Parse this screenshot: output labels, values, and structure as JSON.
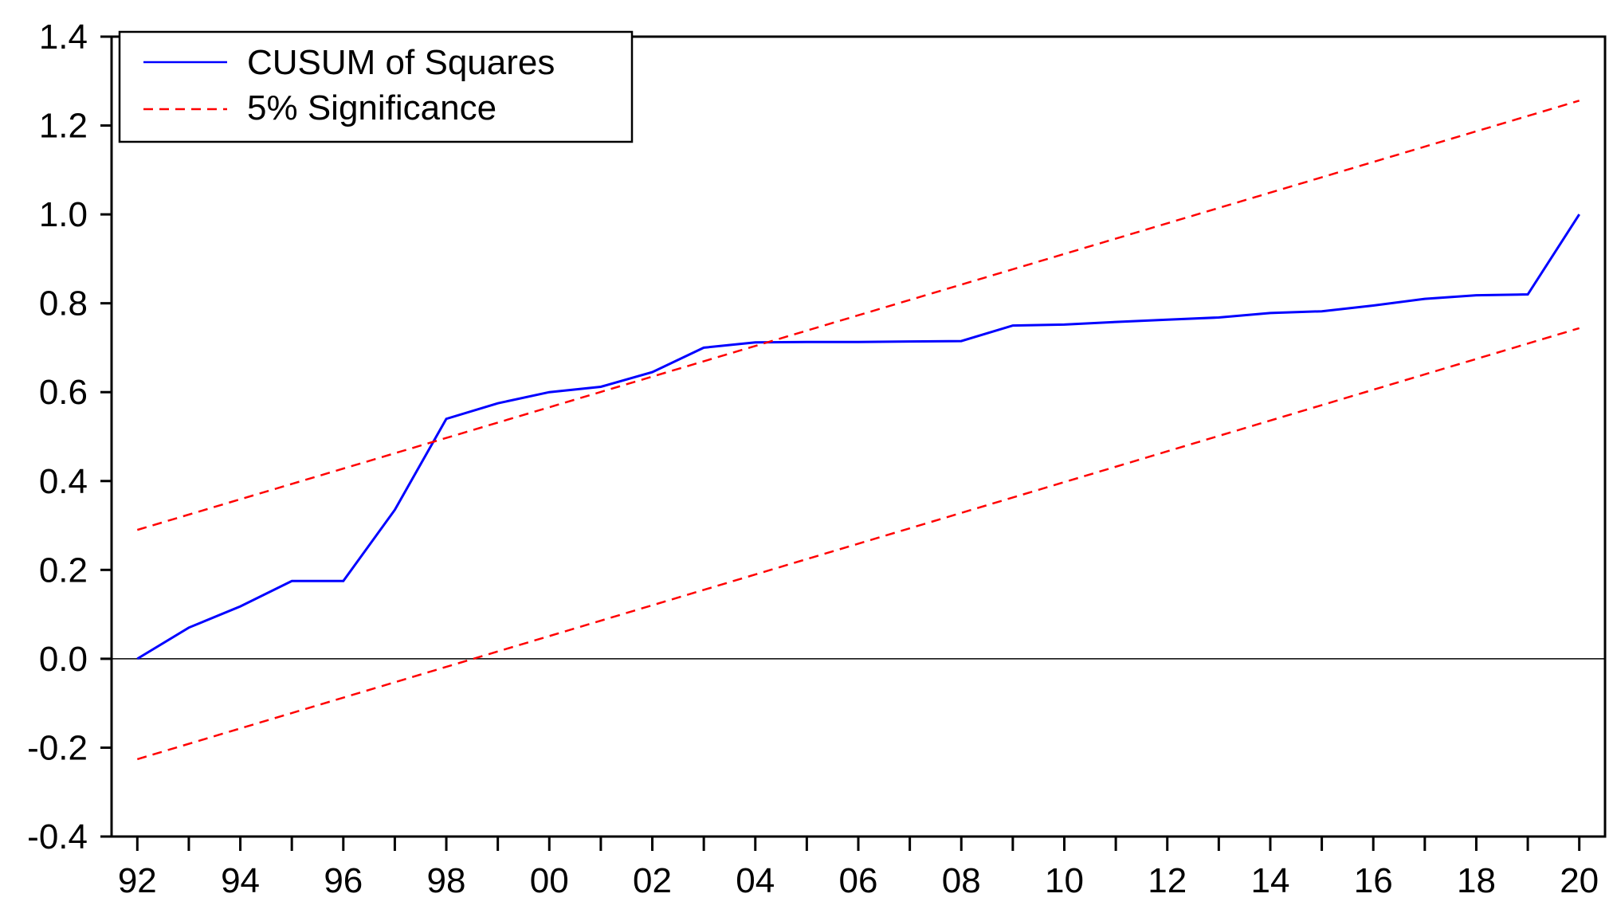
{
  "chart_data": {
    "type": "line",
    "title": "",
    "xlabel": "",
    "ylabel": "",
    "x": [
      1992,
      1993,
      1994,
      1995,
      1996,
      1997,
      1998,
      1999,
      2000,
      2001,
      2002,
      2003,
      2004,
      2005,
      2006,
      2007,
      2008,
      2009,
      2010,
      2011,
      2012,
      2013,
      2014,
      2015,
      2016,
      2017,
      2018,
      2019,
      2020
    ],
    "x_tick_labels": [
      "92",
      "94",
      "96",
      "98",
      "00",
      "02",
      "04",
      "06",
      "08",
      "10",
      "12",
      "14",
      "16",
      "18",
      "20"
    ],
    "x_tick_values": [
      1992,
      1994,
      1996,
      1998,
      2000,
      2002,
      2004,
      2006,
      2008,
      2010,
      2012,
      2014,
      2016,
      2018,
      2020
    ],
    "xlim": [
      1991.5,
      2020.5
    ],
    "ylim": [
      -0.4,
      1.4
    ],
    "y_ticks": [
      -0.4,
      -0.2,
      0.0,
      0.2,
      0.4,
      0.6,
      0.8,
      1.0,
      1.2,
      1.4
    ],
    "y_tick_labels": [
      "-0.4",
      "-0.2",
      "0.0",
      "0.2",
      "0.4",
      "0.6",
      "0.8",
      "1.0",
      "1.2",
      "1.4"
    ],
    "zero_line": true,
    "grid": false,
    "legend_position": "top-left",
    "series": [
      {
        "name": "CUSUM of Squares",
        "color": "#0000ff",
        "style": "solid",
        "values": [
          0.0,
          0.07,
          0.118,
          0.175,
          0.175,
          0.335,
          0.54,
          0.575,
          0.6,
          0.612,
          0.645,
          0.7,
          0.712,
          0.713,
          0.713,
          0.714,
          0.715,
          0.75,
          0.752,
          0.758,
          0.763,
          0.768,
          0.778,
          0.782,
          0.795,
          0.81,
          0.818,
          0.82,
          1.0
        ]
      },
      {
        "name": "5% Significance",
        "color": "#ff0000",
        "style": "dashed",
        "values_upper": [
          0.29,
          1.256
        ],
        "values_lower": [
          -0.226,
          0.744
        ],
        "x_range": [
          1992,
          2020
        ]
      }
    ]
  }
}
